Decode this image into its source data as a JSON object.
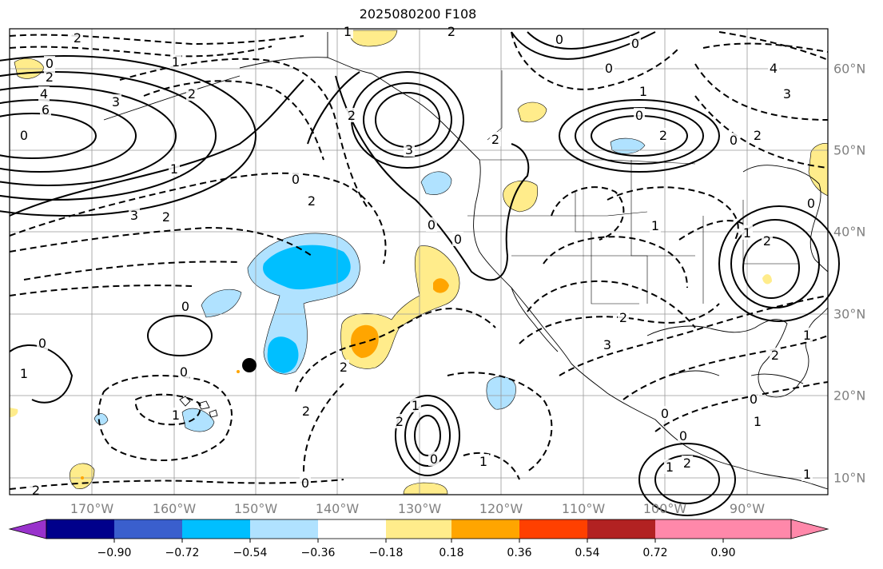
{
  "title": "2025080200 F108",
  "longitude_labels": [
    "170°W",
    "160°W",
    "150°W",
    "140°W",
    "130°W",
    "120°W",
    "110°W",
    "100°W",
    "90°W"
  ],
  "latitude_labels": [
    "60°N",
    "50°N",
    "40°N",
    "30°N",
    "20°N",
    "10°N"
  ],
  "colorbar": {
    "ticks": [
      "−0.90",
      "−0.72",
      "−0.54",
      "−0.36",
      "−0.18",
      "0.18",
      "0.36",
      "0.54",
      "0.72",
      "0.90"
    ],
    "colors": [
      "#9932CC",
      "#00008B",
      "#3A5FCD",
      "#00BFFF",
      "#B0E2FF",
      "#FFFFFF",
      "#FFEC8B",
      "#FFA500",
      "#FF4000",
      "#B22222",
      "#FF88AA"
    ]
  },
  "contour_labels": [
    "2",
    "0",
    "2",
    "4",
    "6",
    "3",
    "1",
    "2",
    "0",
    "1",
    "2",
    "3",
    "0",
    "2",
    "3",
    "2",
    "2",
    "0",
    "2",
    "0",
    "4",
    "3",
    "0",
    "2",
    "0",
    "1",
    "2",
    "1",
    "2",
    "3",
    "0",
    "0",
    "1",
    "0",
    "1",
    "2",
    "0",
    "2",
    "2",
    "1",
    "0",
    "1",
    "0",
    "0",
    "1",
    "2",
    "1",
    "2",
    "1",
    "0",
    "1",
    "0",
    "0",
    "2",
    "1",
    "2",
    "0",
    "0",
    "1"
  ]
}
